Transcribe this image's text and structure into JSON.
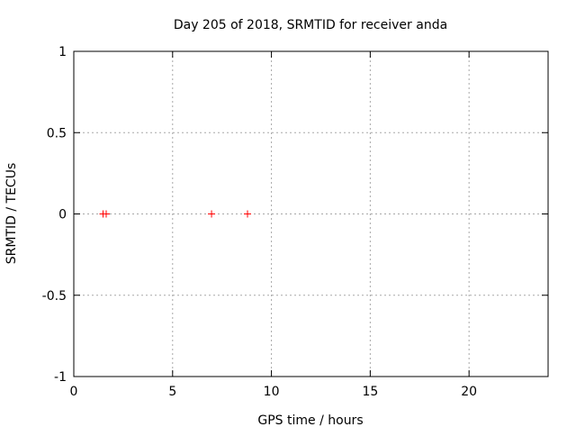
{
  "colors": {
    "background": "#ffffff",
    "foreground": "#000000",
    "grid": "#a8a8a8",
    "marker": "#ff0000"
  },
  "chart_data": {
    "type": "scatter",
    "title": "Day 205 of 2018, SRMTID for receiver anda",
    "xlabel": "GPS time / hours",
    "ylabel": "SRMTID / TECUs",
    "xlim": [
      0,
      24
    ],
    "ylim": [
      -1,
      1
    ],
    "xticks": [
      0,
      5,
      10,
      15,
      20
    ],
    "yticks": [
      -1,
      -0.5,
      0,
      0.5,
      1
    ],
    "grid": true,
    "legend": "none",
    "marker": "plus",
    "series": [
      {
        "name": "SRMTID",
        "color": "#ff0000",
        "points": [
          [
            1.48,
            0
          ],
          [
            1.64,
            0
          ],
          [
            6.97,
            0
          ],
          [
            8.79,
            0
          ]
        ]
      }
    ]
  }
}
